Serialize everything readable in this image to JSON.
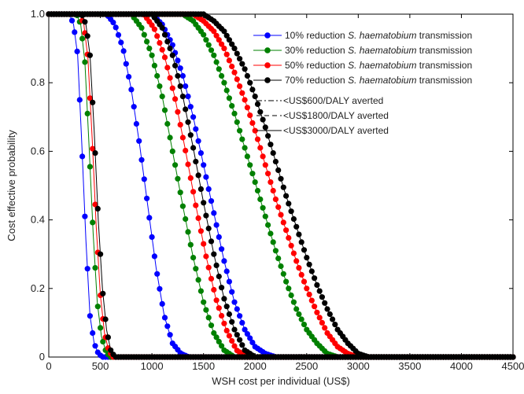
{
  "chart_data": {
    "type": "line",
    "xlabel": "WSH cost per individual (US$)",
    "ylabel": "Cost effective probability",
    "xlim": [
      0,
      4500
    ],
    "ylim": [
      0,
      1
    ],
    "x_ticks": [
      "0",
      "500",
      "1000",
      "1500",
      "2000",
      "2500",
      "3000",
      "3500",
      "4000",
      "4500"
    ],
    "y_ticks": [
      "0",
      "0.2",
      "0.4",
      "0.6",
      "0.8",
      "1.0"
    ],
    "grid": false,
    "legend_position": "top-right",
    "series": [
      {
        "name": "10% reduction S. haematobium transmission",
        "color": "#0000ff",
        "threshold": "<US$600/DALY averted",
        "points": [
          [
            0,
            1.0
          ],
          [
            200,
            1.0
          ],
          [
            240,
            0.97
          ],
          [
            280,
            0.88
          ],
          [
            320,
            0.62
          ],
          [
            360,
            0.34
          ],
          [
            400,
            0.12
          ],
          [
            440,
            0.04
          ],
          [
            480,
            0.01
          ],
          [
            520,
            0.0
          ],
          [
            4500,
            0.0
          ]
        ]
      },
      {
        "name": "10% reduction S. haematobium transmission",
        "color": "#0000ff",
        "threshold": "<US$1800/DALY averted",
        "points": [
          [
            0,
            1.0
          ],
          [
            560,
            1.0
          ],
          [
            640,
            0.97
          ],
          [
            720,
            0.9
          ],
          [
            800,
            0.78
          ],
          [
            880,
            0.62
          ],
          [
            960,
            0.44
          ],
          [
            1040,
            0.26
          ],
          [
            1120,
            0.12
          ],
          [
            1200,
            0.04
          ],
          [
            1280,
            0.01
          ],
          [
            1360,
            0.0
          ],
          [
            4500,
            0.0
          ]
        ]
      },
      {
        "name": "10% reduction S. haematobium transmission",
        "color": "#0000ff",
        "threshold": "<US$3000/DALY averted",
        "points": [
          [
            0,
            1.0
          ],
          [
            1000,
            1.0
          ],
          [
            1100,
            0.97
          ],
          [
            1200,
            0.91
          ],
          [
            1300,
            0.82
          ],
          [
            1400,
            0.7
          ],
          [
            1500,
            0.56
          ],
          [
            1600,
            0.42
          ],
          [
            1700,
            0.28
          ],
          [
            1800,
            0.16
          ],
          [
            1900,
            0.08
          ],
          [
            2000,
            0.03
          ],
          [
            2100,
            0.01
          ],
          [
            2200,
            0.0
          ],
          [
            4500,
            0.0
          ]
        ]
      },
      {
        "name": "30% reduction S. haematobium transmission",
        "color": "#008000",
        "threshold": "<US$600/DALY averted",
        "points": [
          [
            0,
            1.0
          ],
          [
            270,
            1.0
          ],
          [
            310,
            0.97
          ],
          [
            350,
            0.86
          ],
          [
            390,
            0.62
          ],
          [
            430,
            0.36
          ],
          [
            470,
            0.16
          ],
          [
            510,
            0.06
          ],
          [
            550,
            0.02
          ],
          [
            590,
            0.0
          ],
          [
            4500,
            0.0
          ]
        ]
      },
      {
        "name": "30% reduction S. haematobium transmission",
        "color": "#008000",
        "threshold": "<US$1800/DALY averted",
        "points": [
          [
            0,
            1.0
          ],
          [
            800,
            1.0
          ],
          [
            900,
            0.96
          ],
          [
            1000,
            0.88
          ],
          [
            1100,
            0.76
          ],
          [
            1200,
            0.6
          ],
          [
            1300,
            0.44
          ],
          [
            1400,
            0.29
          ],
          [
            1500,
            0.16
          ],
          [
            1600,
            0.07
          ],
          [
            1700,
            0.02
          ],
          [
            1800,
            0.0
          ],
          [
            4500,
            0.0
          ]
        ]
      },
      {
        "name": "30% reduction S. haematobium transmission",
        "color": "#008000",
        "threshold": "<US$3000/DALY averted",
        "points": [
          [
            0,
            1.0
          ],
          [
            1300,
            1.0
          ],
          [
            1400,
            0.98
          ],
          [
            1500,
            0.94
          ],
          [
            1600,
            0.88
          ],
          [
            1700,
            0.8
          ],
          [
            1800,
            0.71
          ],
          [
            1900,
            0.61
          ],
          [
            2000,
            0.51
          ],
          [
            2100,
            0.41
          ],
          [
            2200,
            0.31
          ],
          [
            2300,
            0.22
          ],
          [
            2400,
            0.14
          ],
          [
            2500,
            0.08
          ],
          [
            2600,
            0.04
          ],
          [
            2700,
            0.01
          ],
          [
            2800,
            0.0
          ],
          [
            4500,
            0.0
          ]
        ]
      },
      {
        "name": "50% reduction S. haematobium transmission",
        "color": "#ff0000",
        "threshold": "<US$600/DALY averted",
        "points": [
          [
            0,
            1.0
          ],
          [
            300,
            1.0
          ],
          [
            340,
            0.97
          ],
          [
            380,
            0.87
          ],
          [
            420,
            0.64
          ],
          [
            460,
            0.38
          ],
          [
            500,
            0.18
          ],
          [
            540,
            0.07
          ],
          [
            580,
            0.02
          ],
          [
            620,
            0.0
          ],
          [
            4500,
            0.0
          ]
        ]
      },
      {
        "name": "50% reduction S. haematobium transmission",
        "color": "#ff0000",
        "threshold": "<US$1800/DALY averted",
        "points": [
          [
            0,
            1.0
          ],
          [
            920,
            1.0
          ],
          [
            1020,
            0.96
          ],
          [
            1120,
            0.88
          ],
          [
            1220,
            0.76
          ],
          [
            1320,
            0.61
          ],
          [
            1420,
            0.45
          ],
          [
            1520,
            0.3
          ],
          [
            1620,
            0.17
          ],
          [
            1720,
            0.08
          ],
          [
            1820,
            0.02
          ],
          [
            1920,
            0.0
          ],
          [
            4500,
            0.0
          ]
        ]
      },
      {
        "name": "50% reduction S. haematobium transmission",
        "color": "#ff0000",
        "threshold": "<US$3000/DALY averted",
        "points": [
          [
            0,
            1.0
          ],
          [
            1400,
            1.0
          ],
          [
            1500,
            0.98
          ],
          [
            1600,
            0.95
          ],
          [
            1700,
            0.9
          ],
          [
            1800,
            0.83
          ],
          [
            1900,
            0.75
          ],
          [
            2000,
            0.66
          ],
          [
            2100,
            0.56
          ],
          [
            2200,
            0.46
          ],
          [
            2300,
            0.37
          ],
          [
            2400,
            0.28
          ],
          [
            2500,
            0.2
          ],
          [
            2600,
            0.13
          ],
          [
            2700,
            0.07
          ],
          [
            2800,
            0.03
          ],
          [
            2900,
            0.01
          ],
          [
            3000,
            0.0
          ],
          [
            4500,
            0.0
          ]
        ]
      },
      {
        "name": "70% reduction S. haematobium transmission",
        "color": "#000000",
        "threshold": "<US$600/DALY averted",
        "points": [
          [
            0,
            1.0
          ],
          [
            320,
            1.0
          ],
          [
            360,
            0.97
          ],
          [
            400,
            0.88
          ],
          [
            440,
            0.66
          ],
          [
            480,
            0.4
          ],
          [
            520,
            0.2
          ],
          [
            560,
            0.08
          ],
          [
            600,
            0.02
          ],
          [
            640,
            0.0
          ],
          [
            4500,
            0.0
          ]
        ]
      },
      {
        "name": "70% reduction S. haematobium transmission",
        "color": "#000000",
        "threshold": "<US$1800/DALY averted",
        "points": [
          [
            0,
            1.0
          ],
          [
            1000,
            1.0
          ],
          [
            1100,
            0.96
          ],
          [
            1200,
            0.88
          ],
          [
            1300,
            0.76
          ],
          [
            1400,
            0.61
          ],
          [
            1500,
            0.45
          ],
          [
            1600,
            0.3
          ],
          [
            1700,
            0.17
          ],
          [
            1800,
            0.08
          ],
          [
            1900,
            0.02
          ],
          [
            2000,
            0.0
          ],
          [
            4500,
            0.0
          ]
        ]
      },
      {
        "name": "70% reduction S. haematobium transmission",
        "color": "#000000",
        "threshold": "<US$3000/DALY averted",
        "points": [
          [
            0,
            1.0
          ],
          [
            1500,
            1.0
          ],
          [
            1600,
            0.98
          ],
          [
            1700,
            0.95
          ],
          [
            1800,
            0.9
          ],
          [
            1900,
            0.84
          ],
          [
            2000,
            0.76
          ],
          [
            2100,
            0.67
          ],
          [
            2200,
            0.57
          ],
          [
            2300,
            0.47
          ],
          [
            2400,
            0.38
          ],
          [
            2500,
            0.29
          ],
          [
            2600,
            0.21
          ],
          [
            2700,
            0.14
          ],
          [
            2800,
            0.08
          ],
          [
            2900,
            0.04
          ],
          [
            3000,
            0.01
          ],
          [
            3100,
            0.0
          ],
          [
            4500,
            0.0
          ]
        ]
      }
    ],
    "legend": {
      "series_entries": [
        {
          "prefix": "10% reduction ",
          "species": "S. haematobium",
          "suffix": " transmission",
          "color": "#0000ff"
        },
        {
          "prefix": "30% reduction ",
          "species": "S. haematobium",
          "suffix": " transmission",
          "color": "#008000"
        },
        {
          "prefix": "50% reduction ",
          "species": "S. haematobium",
          "suffix": " transmission",
          "color": "#ff0000"
        },
        {
          "prefix": "70% reduction ",
          "species": "S. haematobium",
          "suffix": " transmission",
          "color": "#000000"
        }
      ],
      "threshold_entries": [
        {
          "label": "<US$600/DALY averted",
          "style": "dash-dot"
        },
        {
          "label": "<US$1800/DALY averted",
          "style": "dashed"
        },
        {
          "label": "<US$3000/DALY averted",
          "style": "solid"
        }
      ]
    }
  }
}
